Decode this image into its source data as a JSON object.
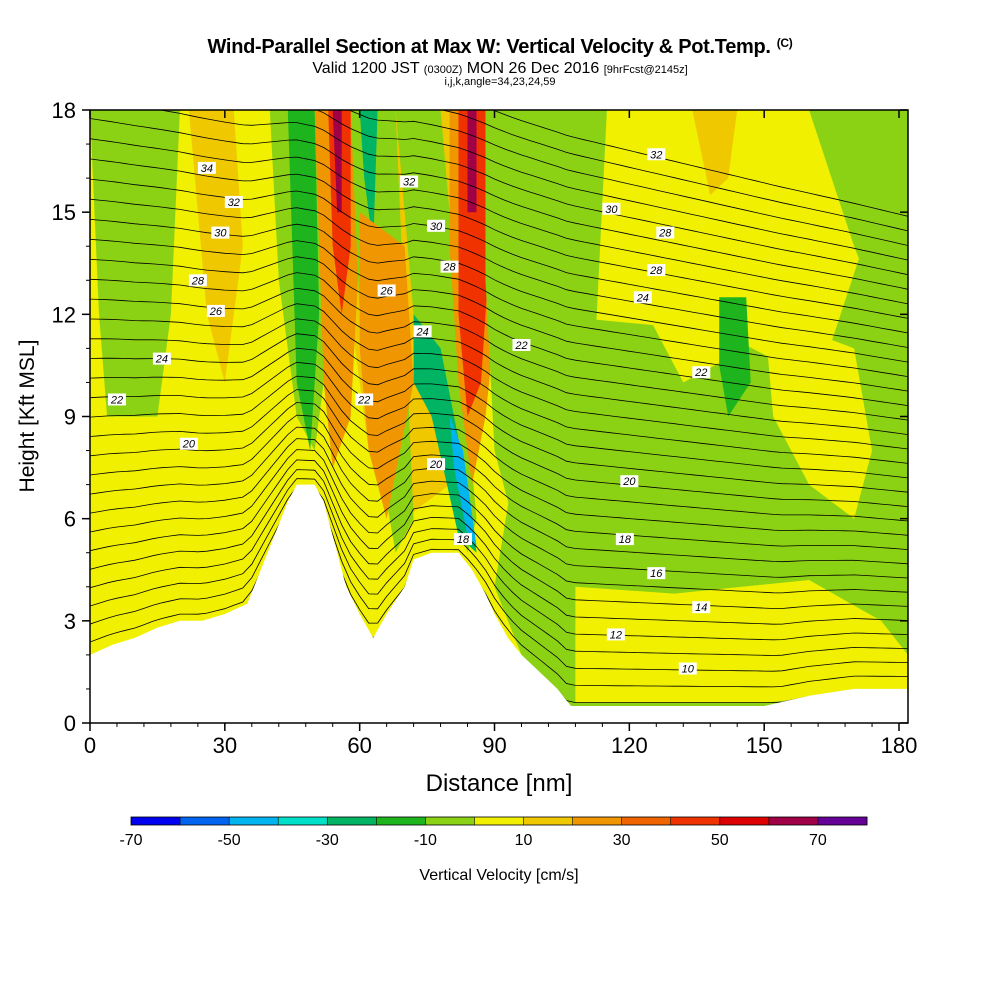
{
  "header": {
    "title_main": "Wind-Parallel Section at Max W: Vertical Velocity & Pot.Temp.",
    "title_copyright": "(C)",
    "valid_prefix": "Valid 1200 JST",
    "valid_utc": "(0300Z)",
    "valid_date": "MON 26 Dec 2016",
    "forecast_info": "[9hrFcst@2145z]",
    "grid_info": "i,j,k,angle=34,23,24,59"
  },
  "chart_data": {
    "type": "heatmap",
    "xlabel": "Distance [nm]",
    "ylabel": "Height [Kft MSL]",
    "xlim": [
      0,
      182
    ],
    "ylim": [
      0,
      18
    ],
    "xticks": [
      0,
      30,
      60,
      90,
      120,
      150,
      180
    ],
    "yticks": [
      0,
      3,
      6,
      9,
      12,
      15,
      18
    ],
    "terrain_profile": [
      [
        0,
        2
      ],
      [
        5,
        2.3
      ],
      [
        10,
        2.5
      ],
      [
        15,
        2.8
      ],
      [
        20,
        3.0
      ],
      [
        25,
        3.0
      ],
      [
        30,
        3.2
      ],
      [
        35,
        3.5
      ],
      [
        38,
        4.5
      ],
      [
        41,
        5.5
      ],
      [
        44,
        6.5
      ],
      [
        46,
        7.0
      ],
      [
        50,
        7.0
      ],
      [
        52,
        6.5
      ],
      [
        54,
        5.5
      ],
      [
        57,
        4.0
      ],
      [
        60,
        3.2
      ],
      [
        63,
        2.5
      ],
      [
        66,
        3.2
      ],
      [
        70,
        4.0
      ],
      [
        72,
        4.8
      ],
      [
        76,
        5.0
      ],
      [
        82,
        5.0
      ],
      [
        85,
        4.5
      ],
      [
        88,
        3.8
      ],
      [
        90,
        3.2
      ],
      [
        93,
        2.5
      ],
      [
        96,
        2.0
      ],
      [
        100,
        1.5
      ],
      [
        104,
        1.0
      ],
      [
        107,
        0.5
      ],
      [
        150,
        0.5
      ],
      [
        160,
        0.8
      ],
      [
        170,
        1.0
      ],
      [
        182,
        1.0
      ]
    ],
    "colorbar": {
      "label": "Vertical Velocity [cm/s]",
      "tick_labels": [
        "-70",
        "-50",
        "-30",
        "-10",
        "10",
        "30",
        "50",
        "70"
      ],
      "levels": [
        -70,
        -60,
        -50,
        -40,
        -30,
        -20,
        -10,
        0,
        10,
        20,
        30,
        40,
        50,
        60,
        70,
        80
      ],
      "colors": [
        "#0000f0",
        "#0064f0",
        "#00b4f0",
        "#00e0c8",
        "#00b464",
        "#1eb41e",
        "#8cd214",
        "#f0f000",
        "#f0c800",
        "#f09600",
        "#f06400",
        "#f03200",
        "#dc0000",
        "#a00046",
        "#640096"
      ]
    },
    "velocity_regions": [
      {
        "value": -20,
        "path": [
          [
            10,
            18
          ],
          [
            15,
            18
          ],
          [
            14,
            14
          ],
          [
            12,
            10
          ],
          [
            8,
            8
          ],
          [
            6,
            12
          ],
          [
            8,
            16
          ]
        ]
      },
      {
        "value": -10,
        "path": [
          [
            0,
            18
          ],
          [
            20,
            18
          ],
          [
            18,
            12
          ],
          [
            14,
            8
          ],
          [
            10,
            6
          ],
          [
            5,
            7
          ],
          [
            2,
            12
          ]
        ]
      },
      {
        "value": 10,
        "path": [
          [
            22,
            18
          ],
          [
            32,
            18
          ],
          [
            34,
            14
          ],
          [
            30,
            10
          ],
          [
            26,
            12
          ],
          [
            24,
            15
          ]
        ]
      },
      {
        "value": 10,
        "path": [
          [
            56,
            18
          ],
          [
            88,
            18
          ],
          [
            90,
            14
          ],
          [
            86,
            9
          ],
          [
            80,
            7
          ],
          [
            70,
            6
          ],
          [
            62,
            8
          ],
          [
            58,
            12
          ]
        ]
      },
      {
        "value": 0,
        "path": [
          [
            0,
            9
          ],
          [
            40,
            9
          ],
          [
            46,
            7
          ],
          [
            38,
            4.5
          ],
          [
            20,
            3
          ],
          [
            0,
            4
          ]
        ]
      },
      {
        "value": -10,
        "path": [
          [
            40,
            18
          ],
          [
            52,
            18
          ],
          [
            54,
            12
          ],
          [
            50,
            8
          ],
          [
            46,
            9
          ],
          [
            42,
            13
          ]
        ]
      },
      {
        "value": -20,
        "path": [
          [
            44,
            18
          ],
          [
            50,
            18
          ],
          [
            51,
            12
          ],
          [
            49,
            8
          ],
          [
            46,
            10
          ],
          [
            45,
            14
          ]
        ]
      },
      {
        "value": 20,
        "path": [
          [
            50,
            18
          ],
          [
            58,
            18
          ],
          [
            60,
            14
          ],
          [
            58,
            9
          ],
          [
            54,
            7.5
          ],
          [
            52,
            10
          ],
          [
            51,
            14
          ]
        ]
      },
      {
        "value": 40,
        "path": [
          [
            53,
            18
          ],
          [
            58,
            18
          ],
          [
            58,
            14
          ],
          [
            56,
            12
          ],
          [
            54,
            14
          ]
        ]
      },
      {
        "value": 60,
        "path": [
          [
            54,
            18
          ],
          [
            56,
            18
          ],
          [
            56,
            15
          ],
          [
            55,
            15
          ]
        ]
      },
      {
        "value": -10,
        "path": [
          [
            58,
            18
          ],
          [
            68,
            18
          ],
          [
            70,
            12
          ],
          [
            72,
            6
          ],
          [
            68,
            5
          ],
          [
            64,
            8
          ],
          [
            60,
            12
          ]
        ]
      },
      {
        "value": -30,
        "path": [
          [
            60,
            18
          ],
          [
            64,
            18
          ],
          [
            63,
            14
          ],
          [
            61,
            16
          ]
        ]
      },
      {
        "value": 20,
        "path": [
          [
            60,
            15
          ],
          [
            70,
            14
          ],
          [
            72,
            10
          ],
          [
            66,
            6
          ],
          [
            62,
            8
          ],
          [
            60,
            11
          ]
        ]
      },
      {
        "value": -10,
        "path": [
          [
            68,
            18
          ],
          [
            78,
            18
          ],
          [
            82,
            12
          ],
          [
            86,
            6
          ],
          [
            84,
            5
          ],
          [
            78,
            8
          ],
          [
            72,
            12
          ]
        ]
      },
      {
        "value": -30,
        "path": [
          [
            72,
            12
          ],
          [
            78,
            11
          ],
          [
            84,
            7
          ],
          [
            86,
            5
          ],
          [
            82,
            5.5
          ],
          [
            76,
            9
          ],
          [
            72,
            10
          ]
        ]
      },
      {
        "value": -50,
        "path": [
          [
            80,
            9
          ],
          [
            83,
            8
          ],
          [
            86,
            5.2
          ],
          [
            84,
            5.5
          ],
          [
            81,
            7.5
          ]
        ]
      },
      {
        "value": 20,
        "path": [
          [
            80,
            18
          ],
          [
            92,
            18
          ],
          [
            92,
            14
          ],
          [
            88,
            9
          ],
          [
            85,
            7
          ],
          [
            82,
            10
          ],
          [
            80,
            14
          ]
        ]
      },
      {
        "value": 40,
        "path": [
          [
            82,
            18
          ],
          [
            88,
            18
          ],
          [
            89,
            14
          ],
          [
            87,
            10
          ],
          [
            84,
            9
          ],
          [
            82,
            12
          ]
        ]
      },
      {
        "value": 60,
        "path": [
          [
            84,
            18
          ],
          [
            86,
            18
          ],
          [
            86,
            15
          ],
          [
            84,
            15
          ]
        ]
      },
      {
        "value": -20,
        "path": [
          [
            92,
            18
          ],
          [
            110,
            18
          ],
          [
            112,
            14
          ],
          [
            106,
            12
          ],
          [
            96,
            13
          ],
          [
            92,
            15
          ]
        ]
      },
      {
        "value": -10,
        "path": [
          [
            88,
            18
          ],
          [
            115,
            18
          ],
          [
            112,
            10
          ],
          [
            104,
            6
          ],
          [
            96,
            5
          ],
          [
            90,
            8
          ],
          [
            88,
            13
          ]
        ]
      },
      {
        "value": -10,
        "path": [
          [
            100,
            12
          ],
          [
            140,
            11.5
          ],
          [
            162,
            10
          ],
          [
            172,
            14
          ],
          [
            182,
            16
          ],
          [
            182,
            0.9
          ],
          [
            150,
            0.5
          ],
          [
            107,
            0.5
          ],
          [
            96,
            2
          ],
          [
            90,
            4
          ]
        ]
      },
      {
        "value": 0,
        "path": [
          [
            124,
            18
          ],
          [
            146,
            18
          ],
          [
            150,
            14
          ],
          [
            146,
            11
          ],
          [
            132,
            10
          ],
          [
            124,
            12
          ]
        ]
      },
      {
        "value": 0,
        "path": [
          [
            150,
            12
          ],
          [
            170,
            11
          ],
          [
            174,
            8
          ],
          [
            170,
            6
          ],
          [
            160,
            7
          ],
          [
            152,
            9
          ]
        ]
      },
      {
        "value": 0,
        "path": [
          [
            108,
            4
          ],
          [
            130,
            3.8
          ],
          [
            160,
            4.2
          ],
          [
            176,
            3
          ],
          [
            182,
            2
          ],
          [
            182,
            1
          ],
          [
            150,
            0.6
          ],
          [
            108,
            0.6
          ]
        ]
      },
      {
        "value": -10,
        "path": [
          [
            160,
            18
          ],
          [
            182,
            18
          ],
          [
            182,
            14
          ],
          [
            176,
            12
          ],
          [
            170,
            14
          ]
        ]
      },
      {
        "value": -20,
        "path": [
          [
            140,
            12.5
          ],
          [
            146,
            12.5
          ],
          [
            147,
            10
          ],
          [
            142,
            9
          ],
          [
            140,
            10.5
          ]
        ]
      },
      {
        "value": 10,
        "path": [
          [
            134,
            18
          ],
          [
            144,
            18
          ],
          [
            142,
            16
          ],
          [
            138,
            15.5
          ]
        ]
      }
    ],
    "theta_contour_labels": [
      {
        "text": "34",
        "x": 26,
        "y": 16.3
      },
      {
        "text": "32",
        "x": 32,
        "y": 15.3
      },
      {
        "text": "30",
        "x": 29,
        "y": 14.4
      },
      {
        "text": "28",
        "x": 24,
        "y": 13.0
      },
      {
        "text": "26",
        "x": 28,
        "y": 12.1
      },
      {
        "text": "24",
        "x": 16,
        "y": 10.7
      },
      {
        "text": "22",
        "x": 6,
        "y": 9.5
      },
      {
        "text": "20",
        "x": 22,
        "y": 8.2
      },
      {
        "text": "32",
        "x": 71,
        "y": 15.9
      },
      {
        "text": "30",
        "x": 77,
        "y": 14.6
      },
      {
        "text": "28",
        "x": 80,
        "y": 13.4
      },
      {
        "text": "26",
        "x": 66,
        "y": 12.7
      },
      {
        "text": "24",
        "x": 74,
        "y": 11.5
      },
      {
        "text": "22",
        "x": 61,
        "y": 9.5
      },
      {
        "text": "20",
        "x": 77,
        "y": 7.6
      },
      {
        "text": "22",
        "x": 96,
        "y": 11.1
      },
      {
        "text": "18",
        "x": 83,
        "y": 5.4
      },
      {
        "text": "32",
        "x": 126,
        "y": 16.7
      },
      {
        "text": "30",
        "x": 116,
        "y": 15.1
      },
      {
        "text": "28",
        "x": 128,
        "y": 14.4
      },
      {
        "text": "28",
        "x": 126,
        "y": 13.3
      },
      {
        "text": "24",
        "x": 123,
        "y": 12.5
      },
      {
        "text": "22",
        "x": 136,
        "y": 10.3
      },
      {
        "text": "20",
        "x": 120,
        "y": 7.1
      },
      {
        "text": "18",
        "x": 119,
        "y": 5.4
      },
      {
        "text": "16",
        "x": 126,
        "y": 4.4
      },
      {
        "text": "14",
        "x": 136,
        "y": 3.4
      },
      {
        "text": "12",
        "x": 117,
        "y": 2.6
      },
      {
        "text": "10",
        "x": 133,
        "y": 1.6
      }
    ]
  }
}
